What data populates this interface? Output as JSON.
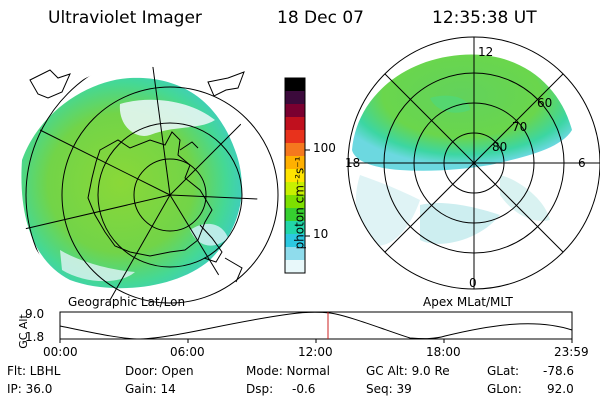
{
  "header": {
    "title": "Ultraviolet Imager",
    "date": "18 Dec 07",
    "time": "12:35:38 UT"
  },
  "colorbar": {
    "unit_label": "photon cm⁻²s⁻¹",
    "ticks": [
      "100",
      "10"
    ],
    "scale": "log",
    "colors": [
      "#000000",
      "#3b0a3b",
      "#7a0030",
      "#c0101e",
      "#e8321c",
      "#f5781e",
      "#ffb000",
      "#ffe400",
      "#c8f000",
      "#7de000",
      "#36d030",
      "#22d6a8",
      "#2cc8e0",
      "#8fdcec",
      "#e8f8fa"
    ]
  },
  "left_panel": {
    "caption": "Geographic Lat/Lon",
    "fill_colors": [
      "#7ad840",
      "#3fd8a2"
    ]
  },
  "right_panel": {
    "caption": "Apex MLat/MLT",
    "mlt_labels": {
      "top": "12",
      "left": "18",
      "right": "6",
      "bottom": "0"
    },
    "mlat_labels": [
      "60",
      "70",
      "80"
    ]
  },
  "timeline": {
    "axis_label": "GC Alt",
    "y_ticks": [
      "9.0",
      "1.8"
    ],
    "x_ticks": [
      "00:00",
      "06:00",
      "12:00",
      "18:00",
      "23:59"
    ],
    "marker_time": "12:35:38",
    "marker_color": "#cc2020"
  },
  "info": {
    "flt": "Flt: LBHL",
    "ip": "IP: 36.0",
    "door": "Door: Open",
    "gain": "Gain: 14",
    "mode": "Mode: Normal",
    "dsp_label": "Dsp:",
    "dsp_value": "-0.6",
    "gc_alt": "GC Alt: 9.0 Re",
    "seq": "Seq: 39",
    "glat_label": "GLat:",
    "glat_value": "-78.6",
    "glon_label": "GLon:",
    "glon_value": "92.0"
  }
}
